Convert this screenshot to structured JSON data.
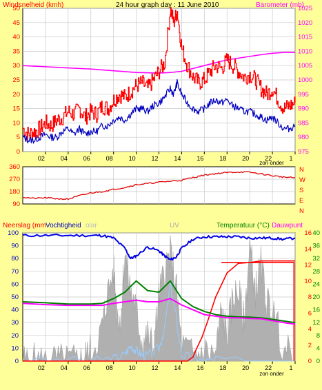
{
  "colors": {
    "background": "#ffff99",
    "panel": "#ffffff",
    "grid": "#c8c8c8",
    "wind_gust": "#ff0000",
    "wind_avg": "#0000c0",
    "barometer": "#ff00ff",
    "direction": "#e00000",
    "rain": "#ff0000",
    "humidity": "#0000e0",
    "solar": "#b0b0b0",
    "uv": "#99ccff",
    "temperature": "#008000",
    "dewpoint": "#ff00ff",
    "label_red": "#ff0000",
    "label_green": "#008000",
    "label_magenta": "#ff00ff",
    "label_blue": "#0000c0"
  },
  "header": {
    "wind_label": "Windsnelheid (kmh)",
    "title": "24 hour graph day : 11 June 2010",
    "baro_label": "Barometer (mb)"
  },
  "bottom_header": {
    "rain_label": "Neerslag (mm",
    "humidity_label": "Vochtigheid",
    "solar_label": "olar",
    "uv_label": "UV",
    "temp_label": "Temperatuur (°C)",
    "dew_label": "Dauwpunt"
  },
  "zon_onder": "zon onder",
  "chart_data": [
    {
      "type": "line",
      "title": "24 hour graph day : 11 June 2010",
      "ylabel": "Windsnelheid (kmh)",
      "ylabel_right": "Barometer (mb)",
      "x_ticks": [
        "02",
        "04",
        "06",
        "08",
        "10",
        "12",
        "14",
        "16",
        "18",
        "20",
        "22",
        "1"
      ],
      "ylim": [
        0,
        50
      ],
      "yticks": [
        0,
        5,
        10,
        15,
        20,
        25,
        30,
        35,
        40,
        45,
        50
      ],
      "ylim_right": [
        975,
        1025
      ],
      "yticks_right": [
        975,
        980,
        985,
        990,
        995,
        1000,
        1005,
        1010,
        1015,
        1020,
        1025
      ],
      "x_range": [
        0,
        24
      ],
      "series": [
        {
          "name": "Windsnelheid (kmh)",
          "role": "gust",
          "x": [
            0,
            0.5,
            1,
            1.5,
            2,
            2.5,
            3,
            3.5,
            4,
            4.5,
            5,
            5.5,
            6,
            6.5,
            7,
            7.5,
            8,
            8.5,
            9,
            9.5,
            10,
            10.5,
            11,
            11.5,
            12,
            12.5,
            13,
            13.3,
            13.6,
            14,
            14.5,
            15,
            15.5,
            16,
            16.5,
            17,
            17.5,
            18,
            18.5,
            19,
            19.5,
            20,
            20.5,
            21,
            21.5,
            22,
            22.5,
            23,
            23.5,
            24
          ],
          "values": [
            8,
            6,
            7,
            8,
            10,
            9,
            11,
            12,
            14,
            13,
            15,
            12,
            14,
            13,
            16,
            15,
            18,
            20,
            19,
            21,
            23,
            24,
            22,
            25,
            28,
            31,
            50,
            45,
            49,
            36,
            30,
            26,
            24,
            25,
            28,
            30,
            29,
            32,
            30,
            28,
            26,
            27,
            25,
            22,
            20,
            22,
            18,
            15,
            16,
            17
          ]
        },
        {
          "name": "",
          "role": "average",
          "x": [
            0,
            0.5,
            1,
            1.5,
            2,
            2.5,
            3,
            3.5,
            4,
            4.5,
            5,
            5.5,
            6,
            6.5,
            7,
            7.5,
            8,
            8.5,
            9,
            9.5,
            10,
            10.5,
            11,
            11.5,
            12,
            12.5,
            13,
            13.3,
            13.6,
            14,
            14.5,
            15,
            15.5,
            16,
            16.5,
            17,
            17.5,
            18,
            18.5,
            19,
            19.5,
            20,
            20.5,
            21,
            21.5,
            22,
            22.5,
            23,
            23.5,
            24
          ],
          "values": [
            5,
            4,
            4,
            5,
            6,
            5,
            5,
            7,
            8,
            6,
            8,
            6,
            7,
            7,
            9,
            9,
            11,
            12,
            11,
            13,
            15,
            15,
            14,
            16,
            17,
            19,
            22,
            20,
            24,
            20,
            17,
            15,
            14,
            15,
            17,
            18,
            17,
            18,
            16,
            15,
            14,
            14,
            13,
            12,
            11,
            12,
            10,
            8,
            8,
            9
          ]
        },
        {
          "name": "Barometer (mb)",
          "axis": "right",
          "x": [
            0,
            2,
            4,
            6,
            8,
            10,
            12,
            13,
            14,
            15,
            16,
            17,
            18,
            19,
            20,
            21,
            22,
            23,
            24
          ],
          "values": [
            1005,
            1004.6,
            1004.2,
            1003.8,
            1003.2,
            1002.6,
            1002.4,
            1002.6,
            1003,
            1004,
            1005,
            1006,
            1007,
            1007.6,
            1008.2,
            1008.8,
            1009.3,
            1009.6,
            1009.6
          ]
        }
      ]
    },
    {
      "type": "line",
      "title": "",
      "ylabel": "",
      "ylim": [
        90,
        360
      ],
      "yticks": [
        90,
        180,
        270,
        360
      ],
      "right_tick_labels": [
        "N",
        "W",
        "S",
        "E",
        "N"
      ],
      "x_range": [
        0,
        24
      ],
      "series": [
        {
          "name": "",
          "x": [
            0,
            1,
            2,
            3,
            4,
            5,
            6,
            7,
            8,
            9,
            10,
            11,
            12,
            13,
            14,
            15,
            16,
            17,
            18,
            19,
            20,
            21,
            22,
            23,
            24
          ],
          "values": [
            140,
            130,
            135,
            128,
            125,
            150,
            170,
            180,
            195,
            210,
            230,
            238,
            248,
            255,
            262,
            282,
            300,
            310,
            318,
            322,
            320,
            308,
            295,
            285,
            280
          ]
        }
      ]
    },
    {
      "type": "line",
      "title": "",
      "ylim": [
        0,
        100
      ],
      "yticks": [
        0,
        10,
        20,
        30,
        40,
        50,
        60,
        70,
        80,
        90,
        100
      ],
      "ylim_right_1": [
        0,
        16
      ],
      "yticks_right_1": [
        0,
        2,
        4,
        6,
        8,
        10,
        12,
        14,
        16
      ],
      "ylim_right_2": [
        0,
        40
      ],
      "yticks_right_2": [
        0,
        4,
        8,
        12,
        16,
        20,
        24,
        28,
        32,
        36,
        40
      ],
      "x_range": [
        0,
        24
      ],
      "series": [
        {
          "name": "Vochtigheid",
          "x": [
            0,
            2,
            4,
            6,
            7,
            8,
            9,
            9.5,
            10,
            11,
            12,
            12.5,
            13,
            13.5,
            14,
            15,
            16,
            17,
            18,
            19,
            20,
            21,
            22,
            23,
            24
          ],
          "values": [
            98,
            98,
            98,
            98,
            98,
            96,
            88,
            80,
            82,
            89,
            86,
            82,
            79,
            81,
            88,
            95,
            97,
            97,
            97,
            97,
            96,
            96,
            96,
            95,
            96
          ]
        },
        {
          "name": "Temperatuur (°C)",
          "x": [
            0,
            2,
            4,
            6,
            7,
            8,
            9,
            10,
            11,
            12,
            13,
            14,
            15,
            16,
            17,
            18,
            19,
            20,
            21,
            22,
            23,
            24
          ],
          "values": [
            18.5,
            18.2,
            17.8,
            17.8,
            18,
            19.5,
            21.5,
            25,
            22,
            21.5,
            25,
            19.5,
            17,
            15.5,
            14.5,
            14,
            13.8,
            13.7,
            13.5,
            13,
            12.5,
            12
          ]
        },
        {
          "name": "Dauwpunt",
          "x": [
            0,
            2,
            4,
            6,
            7,
            8,
            9,
            10,
            11,
            12,
            13,
            14,
            15,
            16,
            17,
            18,
            19,
            20,
            21,
            22,
            23,
            24
          ],
          "values": [
            18,
            17.6,
            17.4,
            17.4,
            17.4,
            18,
            18.5,
            19,
            18.5,
            18.5,
            19.5,
            17.5,
            16,
            14.5,
            14,
            13.5,
            13.5,
            13.3,
            13.2,
            12.6,
            12,
            11.5
          ]
        },
        {
          "name": "Neerslag (mm",
          "axis": "right_1",
          "x": [
            0,
            14.5,
            15,
            15.3,
            15.8,
            16.3,
            17,
            18,
            19,
            20,
            21,
            22,
            23,
            24
          ],
          "values": [
            0,
            0,
            0.5,
            1.5,
            3,
            5,
            8,
            11,
            12.2,
            12.3,
            12.5,
            12.5,
            12.5,
            12.5
          ]
        },
        {
          "name": "Solar",
          "x": [
            0,
            1,
            2,
            3,
            4,
            5,
            5.5,
            6,
            7,
            7.3,
            8,
            8.3,
            8.6,
            9,
            9.5,
            10,
            10.5,
            11,
            11.5,
            12,
            12.5,
            13,
            13.5,
            14,
            15,
            16,
            17,
            17.5,
            18,
            18.5,
            19,
            19.5,
            20,
            20.5,
            21,
            21.5,
            22,
            23,
            24
          ],
          "values": [
            0,
            0,
            0,
            0,
            0,
            0,
            3,
            8,
            25,
            45,
            72,
            40,
            30,
            85,
            55,
            40,
            15,
            20,
            10,
            50,
            70,
            85,
            60,
            12,
            5,
            8,
            5,
            40,
            20,
            48,
            55,
            30,
            90,
            55,
            75,
            45,
            40,
            10,
            0
          ]
        },
        {
          "name": "UV",
          "x": [
            0,
            6,
            8,
            9,
            9.5,
            10,
            10.5,
            11,
            12,
            12.5,
            13,
            13.5,
            14,
            15,
            16,
            17,
            24
          ],
          "values": [
            0,
            0,
            2,
            5,
            12,
            8,
            5,
            4,
            10,
            25,
            60,
            35,
            5,
            2,
            0,
            0,
            0
          ]
        }
      ]
    }
  ]
}
